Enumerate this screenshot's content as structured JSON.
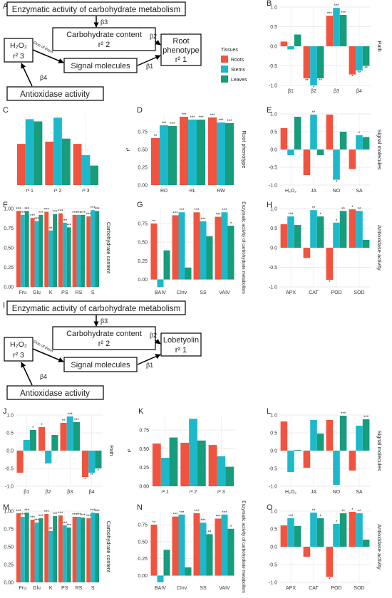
{
  "colors": {
    "roots": "#F2533E",
    "stems": "#1DB9CB",
    "leaves": "#179C7C",
    "grid": "#e4e4e4"
  },
  "legend": {
    "title": "Tissues",
    "items": [
      "Roots",
      "Stems",
      "Leaves"
    ]
  },
  "diagrams": [
    {
      "letter": "A",
      "top": "Enzymatic activity of carbohydrate metabolism",
      "carb_line1": "Carbohydrate content",
      "carb_line2": "r² 2",
      "h2o2_line1": "H₂O₂",
      "h2o2_line2": "r² 3",
      "signal": "Signal molecules",
      "root_line1": "Root",
      "root_line2": "phenotype",
      "root_line3": "r² 1",
      "anti": "Antioxidase activity",
      "one_of_them": "One of them",
      "b1": "β1",
      "b2": "β2",
      "b3": "β3",
      "b4": "β4"
    },
    {
      "letter": "I",
      "top": "Enzymatic activity of carbohydrate metabolism",
      "carb_line1": "Carbohydrate content",
      "carb_line2": "r² 2",
      "h2o2_line1": "H₂O₂",
      "h2o2_line2": "r² 3",
      "signal": "Signal molecules",
      "root_line1": "Lobetyolin",
      "root_line2": "r² 1",
      "root_line3": "",
      "anti": "Antioxidase activity",
      "one_of_them": "One of them",
      "b1": "β1",
      "b2": "β2",
      "b3": "β3",
      "b4": "β4"
    }
  ],
  "chart_data": [
    {
      "letter": "B",
      "type": "bar",
      "ylabel": "Path",
      "xlabel": "",
      "ylim": [
        -1.0,
        1.0
      ],
      "ticks": [
        "-1.0",
        "-0.5",
        "0.0",
        "0.5",
        "1.0"
      ],
      "categories": [
        "β1",
        "β2",
        "β3",
        "β4"
      ],
      "series": [
        {
          "name": "Roots",
          "values": [
            0.12,
            -0.82,
            0.78,
            -0.72
          ]
        },
        {
          "name": "Stems",
          "values": [
            -0.08,
            -1.0,
            0.98,
            -0.62
          ]
        },
        {
          "name": "Leaves",
          "values": [
            0.3,
            -0.82,
            0.8,
            -0.5
          ]
        }
      ],
      "labels": [
        [
          "",
          "**",
          "***",
          "*"
        ],
        [
          "",
          "*",
          "***",
          "**"
        ],
        [
          "",
          "**",
          "***",
          "**"
        ]
      ]
    },
    {
      "letter": "C",
      "type": "bar",
      "ylabel": "",
      "xlabel": "",
      "ylim": [
        0,
        0.95
      ],
      "ticks": [
        "",
        "",
        "",
        ""
      ],
      "categories": [
        "r² 1",
        "r² 2",
        "r² 3"
      ],
      "series": [
        {
          "name": "Roots",
          "values": [
            0.55,
            0.58,
            0.55
          ]
        },
        {
          "name": "Stems",
          "values": [
            0.88,
            0.9,
            0.4
          ]
        },
        {
          "name": "Leaves",
          "values": [
            0.85,
            0.62,
            0.26
          ]
        }
      ],
      "labels": [
        [
          "",
          "",
          ""
        ],
        [
          "",
          "",
          ""
        ],
        [
          "",
          "",
          ""
        ]
      ]
    },
    {
      "letter": "D",
      "type": "bar",
      "ylabel": "Root phenotype",
      "xlabel": "",
      "ylim": [
        0,
        1.0
      ],
      "ticks": [
        "0.00",
        "0.25",
        "0.50",
        "0.75"
      ],
      "yaxis_title": "r²",
      "categories": [
        "RD",
        "RL",
        "RW"
      ],
      "series": [
        {
          "name": "Roots",
          "values": [
            0.66,
            0.96,
            0.95
          ]
        },
        {
          "name": "Stems",
          "values": [
            0.84,
            0.92,
            0.88
          ]
        },
        {
          "name": "Leaves",
          "values": [
            0.83,
            0.92,
            0.87
          ]
        }
      ],
      "labels": [
        [
          "**",
          "***",
          "***"
        ],
        [
          "***",
          "***",
          "***"
        ],
        [
          "***",
          "***",
          "***"
        ]
      ]
    },
    {
      "letter": "E",
      "type": "bar",
      "ylabel": "Signal molecules",
      "xlabel": "",
      "ylim": [
        -1.0,
        1.0
      ],
      "ticks": [
        "-1.0",
        "-0.5",
        "0.0",
        "0.5",
        "1.0"
      ],
      "categories": [
        "H₂O₂",
        "JA",
        "NO",
        "SA"
      ],
      "series": [
        {
          "name": "Roots",
          "values": [
            0.6,
            -0.72,
            0.98,
            -0.55
          ]
        },
        {
          "name": "Stems",
          "values": [
            -0.16,
            0.98,
            -0.85,
            0.4
          ]
        },
        {
          "name": "Leaves",
          "values": [
            0.92,
            -0.16,
            0.5,
            0.35
          ]
        }
      ],
      "labels": [
        [
          "",
          "",
          "",
          ""
        ],
        [
          "",
          "**",
          "*",
          "*"
        ],
        [
          "",
          "",
          "",
          ""
        ]
      ]
    },
    {
      "letter": "F",
      "type": "bar",
      "ylabel": "Carbohydrate content",
      "xlabel": "",
      "ylim": [
        0,
        1.0
      ],
      "ticks": [
        "0.00",
        "0.25",
        "0.50",
        "0.75",
        "1.00"
      ],
      "categories": [
        "Fru",
        "Glu",
        "K",
        "PS",
        "RS",
        "S"
      ],
      "series": [
        {
          "name": "Roots",
          "values": [
            0.97,
            0.88,
            0.96,
            0.94,
            0.92,
            0.9
          ]
        },
        {
          "name": "Stems",
          "values": [
            0.92,
            0.84,
            0.72,
            0.82,
            0.92,
            0.98
          ]
        },
        {
          "name": "Leaves",
          "values": [
            0.97,
            0.92,
            0.93,
            0.76,
            0.92,
            0.97
          ]
        }
      ],
      "labels": [
        [
          "***",
          "***",
          "***",
          "***",
          "***",
          "***"
        ],
        [
          "***",
          "***",
          "**",
          "***",
          "***",
          "***"
        ],
        [
          "***",
          "***",
          "***",
          "***",
          "***",
          "***"
        ]
      ]
    },
    {
      "letter": "G",
      "type": "bar",
      "ylabel": "Enzymatic activity of carbohydrate metabolism",
      "xlabel": "",
      "ylim": [
        -0.1,
        0.95
      ],
      "ticks": [
        "0.00",
        "0.25",
        "0.50",
        "0.75"
      ],
      "categories": [
        "BAIV",
        "CInv",
        "SS",
        "VAIV"
      ],
      "series": [
        {
          "name": "Roots",
          "values": [
            0.75,
            0.86,
            0.9,
            0.84
          ]
        },
        {
          "name": "Stems",
          "values": [
            -0.1,
            0.9,
            0.78,
            0.9
          ]
        },
        {
          "name": "Leaves",
          "values": [
            0.39,
            0.16,
            0.58,
            0.72
          ]
        }
      ],
      "labels": [
        [
          "**",
          "***",
          "***",
          "***"
        ],
        [
          "",
          "***",
          "***",
          "***"
        ],
        [
          "",
          "",
          "",
          "*"
        ]
      ]
    },
    {
      "letter": "H",
      "type": "bar",
      "ylabel": "Antioxidase activity",
      "xlabel": "",
      "ylim": [
        -1.0,
        1.0
      ],
      "ticks": [
        "-1.0",
        "-0.5",
        "0.0",
        "0.5",
        "1.0"
      ],
      "categories": [
        "APX",
        "CAT",
        "POD",
        "SOD"
      ],
      "series": [
        {
          "name": "Roots",
          "values": [
            0.6,
            -0.26,
            -0.82,
            0.98
          ]
        },
        {
          "name": "Stems",
          "values": [
            0.8,
            0.96,
            0.64,
            0.94
          ]
        },
        {
          "name": "Leaves",
          "values": [
            0.58,
            0.8,
            0.94,
            0.2
          ]
        }
      ],
      "labels": [
        [
          "",
          "",
          "*",
          "*"
        ],
        [
          "***",
          "**",
          "*",
          "**"
        ],
        [
          "",
          "*",
          "**",
          ""
        ]
      ]
    },
    {
      "letter": "J",
      "type": "bar",
      "ylabel": "Path",
      "xlabel": "",
      "ylim": [
        -1.0,
        1.0
      ],
      "ticks": [
        "-1.0",
        "-0.5",
        "0.0",
        "0.5",
        "1.0"
      ],
      "categories": [
        "β1",
        "β2",
        "β3",
        "β4"
      ],
      "series": [
        {
          "name": "Roots",
          "values": [
            -0.62,
            0.66,
            0.78,
            -0.74
          ]
        },
        {
          "name": "Stems",
          "values": [
            0.3,
            -0.36,
            0.96,
            -0.62
          ]
        },
        {
          "name": "Leaves",
          "values": [
            0.58,
            0.44,
            0.8,
            -0.5
          ]
        }
      ],
      "labels": [
        [
          "",
          "*",
          "**",
          "*"
        ],
        [
          "",
          "",
          "***",
          "**"
        ],
        [
          "*",
          "",
          "***",
          "*"
        ]
      ]
    },
    {
      "letter": "K",
      "type": "bar",
      "ylabel": "",
      "xlabel": "",
      "yaxis_title": "r²",
      "ylim": [
        0,
        0.95
      ],
      "ticks": [
        "0.00",
        "0.25",
        "0.50",
        "0.75"
      ],
      "categories": [
        "r² 1",
        "r² 2",
        "r² 3"
      ],
      "series": [
        {
          "name": "Roots",
          "values": [
            0.57,
            0.58,
            0.55
          ]
        },
        {
          "name": "Stems",
          "values": [
            0.38,
            0.9,
            0.4
          ]
        },
        {
          "name": "Leaves",
          "values": [
            0.65,
            0.61,
            0.26
          ]
        }
      ],
      "labels": [
        [
          "",
          "",
          ""
        ],
        [
          "",
          "",
          ""
        ],
        [
          "",
          "",
          ""
        ]
      ]
    },
    {
      "letter": "L",
      "type": "bar",
      "ylabel": "Signal molecules",
      "xlabel": "",
      "ylim": [
        -1.0,
        1.0
      ],
      "ticks": [
        "-1.0",
        "-0.5",
        "0.0",
        "0.5",
        "1.0"
      ],
      "categories": [
        "H₂O₂",
        "JA",
        "NO",
        "SA"
      ],
      "series": [
        {
          "name": "Roots",
          "values": [
            0.82,
            -0.48,
            0.86,
            -0.56
          ]
        },
        {
          "name": "Stems",
          "values": [
            -0.6,
            0.86,
            -0.96,
            0.7
          ]
        },
        {
          "name": "Leaves",
          "values": [
            0.02,
            0.48,
            0.98,
            0.88
          ]
        }
      ],
      "labels": [
        [
          "",
          "",
          "",
          ""
        ],
        [
          "",
          "",
          "",
          ""
        ],
        [
          "",
          "",
          "***",
          "***"
        ]
      ]
    },
    {
      "letter": "M",
      "type": "bar",
      "ylabel": "Carbohydrate content",
      "xlabel": "",
      "ylim": [
        0,
        1.0
      ],
      "ticks": [
        "0.00",
        "0.25",
        "0.50",
        "0.75",
        "1.00"
      ],
      "categories": [
        "Fru",
        "Glu",
        "K",
        "PS",
        "RS",
        "S"
      ],
      "series": [
        {
          "name": "Roots",
          "values": [
            0.97,
            0.88,
            0.96,
            0.94,
            0.92,
            0.9
          ]
        },
        {
          "name": "Stems",
          "values": [
            0.92,
            0.84,
            0.72,
            0.8,
            0.92,
            0.98
          ]
        },
        {
          "name": "Leaves",
          "values": [
            0.98,
            0.9,
            0.93,
            0.77,
            0.91,
            0.97
          ]
        }
      ],
      "labels": [
        [
          "***",
          "***",
          "***",
          "***",
          "***",
          "***"
        ],
        [
          "***",
          "***",
          "**",
          "***",
          "***",
          "***"
        ],
        [
          "***",
          "***",
          "***",
          "***",
          "***",
          "***"
        ]
      ]
    },
    {
      "letter": "N",
      "type": "bar",
      "ylabel": "Enzymatic activity of carbohydrate metabolism",
      "xlabel": "",
      "ylim": [
        -0.1,
        0.95
      ],
      "ticks": [
        "0.00",
        "0.25",
        "0.50",
        "0.75"
      ],
      "categories": [
        "BAIV",
        "CInv",
        "SS",
        "VAIV"
      ],
      "series": [
        {
          "name": "Roots",
          "values": [
            0.75,
            0.87,
            0.92,
            0.84
          ]
        },
        {
          "name": "Stems",
          "values": [
            -0.1,
            0.9,
            0.78,
            0.9
          ]
        },
        {
          "name": "Leaves",
          "values": [
            0.38,
            0.12,
            0.61,
            0.69
          ]
        }
      ],
      "labels": [
        [
          "**",
          "***",
          "***",
          "***"
        ],
        [
          "",
          "***",
          "***",
          "***"
        ],
        [
          "",
          "",
          "**",
          "*"
        ]
      ]
    },
    {
      "letter": "O",
      "type": "bar",
      "ylabel": "Antioxidase activity",
      "xlabel": "",
      "ylim": [
        -1.0,
        1.0
      ],
      "ticks": [
        "-1.0",
        "-0.5",
        "0.0",
        "0.5",
        "1.0"
      ],
      "categories": [
        "APX",
        "CAT",
        "POD",
        "SOD"
      ],
      "series": [
        {
          "name": "Roots",
          "values": [
            0.6,
            -0.28,
            -0.85,
            0.98
          ]
        },
        {
          "name": "Stems",
          "values": [
            0.8,
            0.96,
            0.64,
            0.94
          ]
        },
        {
          "name": "Leaves",
          "values": [
            0.58,
            0.8,
            0.94,
            0.2
          ]
        }
      ],
      "labels": [
        [
          "",
          "",
          "*",
          "*"
        ],
        [
          "***",
          "**",
          "*",
          "**"
        ],
        [
          "",
          "*",
          "**",
          ""
        ]
      ]
    }
  ]
}
